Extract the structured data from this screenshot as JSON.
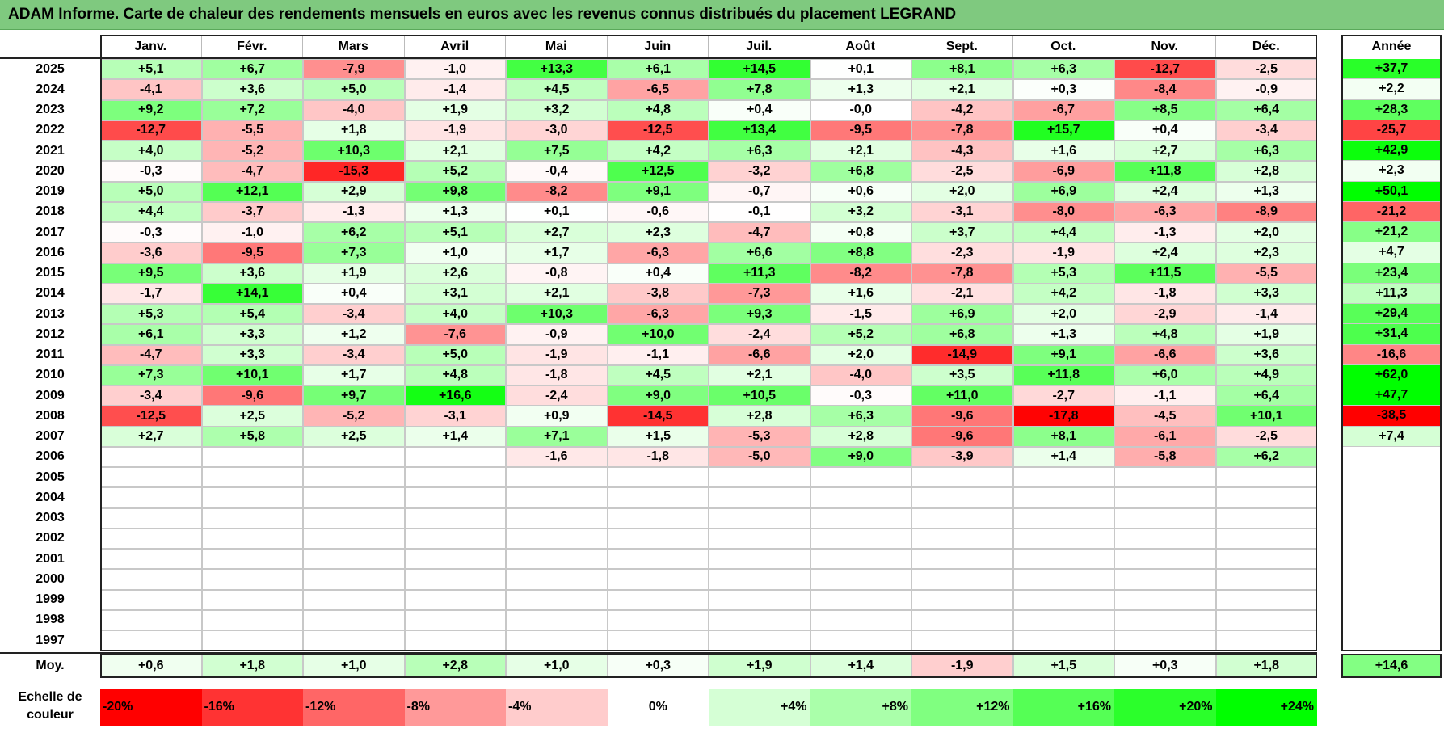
{
  "title": "ADAM Informe. Carte de chaleur des rendements mensuels en euros avec les revenus connus distribués du placement LEGRAND",
  "chart_data": {
    "type": "heatmap",
    "title": "ADAM Informe. Carte de chaleur des rendements mensuels en euros avec les revenus connus distribués du placement LEGRAND",
    "columns": [
      "Janv.",
      "Févr.",
      "Mars",
      "Avril",
      "Mai",
      "Juin",
      "Juil.",
      "Août",
      "Sept.",
      "Oct.",
      "Nov.",
      "Déc."
    ],
    "year_column_label": "Année",
    "rows": [
      {
        "year": "2025",
        "months": [
          "+5,1",
          "+6,7",
          "-7,9",
          "-1,0",
          "+13,3",
          "+6,1",
          "+14,5",
          "+0,1",
          "+8,1",
          "+6,3",
          "-12,7",
          "-2,5"
        ],
        "annual": "+37,7"
      },
      {
        "year": "2024",
        "months": [
          "-4,1",
          "+3,6",
          "+5,0",
          "-1,4",
          "+4,5",
          "-6,5",
          "+7,8",
          "+1,3",
          "+2,1",
          "+0,3",
          "-8,4",
          "-0,9"
        ],
        "annual": "+2,2"
      },
      {
        "year": "2023",
        "months": [
          "+9,2",
          "+7,2",
          "-4,0",
          "+1,9",
          "+3,2",
          "+4,8",
          "+0,4",
          "-0,0",
          "-4,2",
          "-6,7",
          "+8,5",
          "+6,4"
        ],
        "annual": "+28,3"
      },
      {
        "year": "2022",
        "months": [
          "-12,7",
          "-5,5",
          "+1,8",
          "-1,9",
          "-3,0",
          "-12,5",
          "+13,4",
          "-9,5",
          "-7,8",
          "+15,7",
          "+0,4",
          "-3,4"
        ],
        "annual": "-25,7"
      },
      {
        "year": "2021",
        "months": [
          "+4,0",
          "-5,2",
          "+10,3",
          "+2,1",
          "+7,5",
          "+4,2",
          "+6,3",
          "+2,1",
          "-4,3",
          "+1,6",
          "+2,7",
          "+6,3"
        ],
        "annual": "+42,9"
      },
      {
        "year": "2020",
        "months": [
          "-0,3",
          "-4,7",
          "-15,3",
          "+5,2",
          "-0,4",
          "+12,5",
          "-3,2",
          "+6,8",
          "-2,5",
          "-6,9",
          "+11,8",
          "+2,8"
        ],
        "annual": "+2,3"
      },
      {
        "year": "2019",
        "months": [
          "+5,0",
          "+12,1",
          "+2,9",
          "+9,8",
          "-8,2",
          "+9,1",
          "-0,7",
          "+0,6",
          "+2,0",
          "+6,9",
          "+2,4",
          "+1,3"
        ],
        "annual": "+50,1"
      },
      {
        "year": "2018",
        "months": [
          "+4,4",
          "-3,7",
          "-1,3",
          "+1,3",
          "+0,1",
          "-0,6",
          "-0,1",
          "+3,2",
          "-3,1",
          "-8,0",
          "-6,3",
          "-8,9"
        ],
        "annual": "-21,2"
      },
      {
        "year": "2017",
        "months": [
          "-0,3",
          "-1,0",
          "+6,2",
          "+5,1",
          "+2,7",
          "+2,3",
          "-4,7",
          "+0,8",
          "+3,7",
          "+4,4",
          "-1,3",
          "+2,0"
        ],
        "annual": "+21,2"
      },
      {
        "year": "2016",
        "months": [
          "-3,6",
          "-9,5",
          "+7,3",
          "+1,0",
          "+1,7",
          "-6,3",
          "+6,6",
          "+8,8",
          "-2,3",
          "-1,9",
          "+2,4",
          "+2,3"
        ],
        "annual": "+4,7"
      },
      {
        "year": "2015",
        "months": [
          "+9,5",
          "+3,6",
          "+1,9",
          "+2,6",
          "-0,8",
          "+0,4",
          "+11,3",
          "-8,2",
          "-7,8",
          "+5,3",
          "+11,5",
          "-5,5"
        ],
        "annual": "+23,4"
      },
      {
        "year": "2014",
        "months": [
          "-1,7",
          "+14,1",
          "+0,4",
          "+3,1",
          "+2,1",
          "-3,8",
          "-7,3",
          "+1,6",
          "-2,1",
          "+4,2",
          "-1,8",
          "+3,3"
        ],
        "annual": "+11,3"
      },
      {
        "year": "2013",
        "months": [
          "+5,3",
          "+5,4",
          "-3,4",
          "+4,0",
          "+10,3",
          "-6,3",
          "+9,3",
          "-1,5",
          "+6,9",
          "+2,0",
          "-2,9",
          "-1,4"
        ],
        "annual": "+29,4"
      },
      {
        "year": "2012",
        "months": [
          "+6,1",
          "+3,3",
          "+1,2",
          "-7,6",
          "-0,9",
          "+10,0",
          "-2,4",
          "+5,2",
          "+6,8",
          "+1,3",
          "+4,8",
          "+1,9"
        ],
        "annual": "+31,4"
      },
      {
        "year": "2011",
        "months": [
          "-4,7",
          "+3,3",
          "-3,4",
          "+5,0",
          "-1,9",
          "-1,1",
          "-6,6",
          "+2,0",
          "-14,9",
          "+9,1",
          "-6,6",
          "+3,6"
        ],
        "annual": "-16,6"
      },
      {
        "year": "2010",
        "months": [
          "+7,3",
          "+10,1",
          "+1,7",
          "+4,8",
          "-1,8",
          "+4,5",
          "+2,1",
          "-4,0",
          "+3,5",
          "+11,8",
          "+6,0",
          "+4,9"
        ],
        "annual": "+62,0"
      },
      {
        "year": "2009",
        "months": [
          "-3,4",
          "-9,6",
          "+9,7",
          "+16,6",
          "-2,4",
          "+9,0",
          "+10,5",
          "-0,3",
          "+11,0",
          "-2,7",
          "-1,1",
          "+6,4"
        ],
        "annual": "+47,7"
      },
      {
        "year": "2008",
        "months": [
          "-12,5",
          "+2,5",
          "-5,2",
          "-3,1",
          "+0,9",
          "-14,5",
          "+2,8",
          "+6,3",
          "-9,6",
          "-17,8",
          "-4,5",
          "+10,1"
        ],
        "annual": "-38,5"
      },
      {
        "year": "2007",
        "months": [
          "+2,7",
          "+5,8",
          "+2,5",
          "+1,4",
          "+7,1",
          "+1,5",
          "-5,3",
          "+2,8",
          "-9,6",
          "+8,1",
          "-6,1",
          "-2,5"
        ],
        "annual": "+7,4"
      },
      {
        "year": "2006",
        "months": [
          "",
          "",
          "",
          "",
          "-1,6",
          "-1,8",
          "-5,0",
          "+9,0",
          "-3,9",
          "+1,4",
          "-5,8",
          "+6,2"
        ],
        "annual": ""
      },
      {
        "year": "2005",
        "months": [
          "",
          "",
          "",
          "",
          "",
          "",
          "",
          "",
          "",
          "",
          "",
          ""
        ],
        "annual": ""
      },
      {
        "year": "2004",
        "months": [
          "",
          "",
          "",
          "",
          "",
          "",
          "",
          "",
          "",
          "",
          "",
          ""
        ],
        "annual": ""
      },
      {
        "year": "2003",
        "months": [
          "",
          "",
          "",
          "",
          "",
          "",
          "",
          "",
          "",
          "",
          "",
          ""
        ],
        "annual": ""
      },
      {
        "year": "2002",
        "months": [
          "",
          "",
          "",
          "",
          "",
          "",
          "",
          "",
          "",
          "",
          "",
          ""
        ],
        "annual": ""
      },
      {
        "year": "2001",
        "months": [
          "",
          "",
          "",
          "",
          "",
          "",
          "",
          "",
          "",
          "",
          "",
          ""
        ],
        "annual": ""
      },
      {
        "year": "2000",
        "months": [
          "",
          "",
          "",
          "",
          "",
          "",
          "",
          "",
          "",
          "",
          "",
          ""
        ],
        "annual": ""
      },
      {
        "year": "1999",
        "months": [
          "",
          "",
          "",
          "",
          "",
          "",
          "",
          "",
          "",
          "",
          "",
          ""
        ],
        "annual": ""
      },
      {
        "year": "1998",
        "months": [
          "",
          "",
          "",
          "",
          "",
          "",
          "",
          "",
          "",
          "",
          "",
          ""
        ],
        "annual": ""
      },
      {
        "year": "1997",
        "months": [
          "",
          "",
          "",
          "",
          "",
          "",
          "",
          "",
          "",
          "",
          "",
          ""
        ],
        "annual": ""
      }
    ],
    "average": {
      "label": "Moy.",
      "months": [
        "+0,6",
        "+1,8",
        "+1,0",
        "+2,8",
        "+1,0",
        "+0,3",
        "+1,9",
        "+1,4",
        "-1,9",
        "+1,5",
        "+0,3",
        "+1,8"
      ],
      "annual": "+14,6"
    },
    "color_scale": {
      "label": "Echelle de couleur",
      "stops": [
        "-20%",
        "-16%",
        "-12%",
        "-8%",
        "-4%",
        "0%",
        "+4%",
        "+8%",
        "+12%",
        "+16%",
        "+20%",
        "+24%"
      ],
      "negative_color": "#ff0000",
      "neutral_color": "#ffffff",
      "positive_color": "#00ff00"
    }
  }
}
